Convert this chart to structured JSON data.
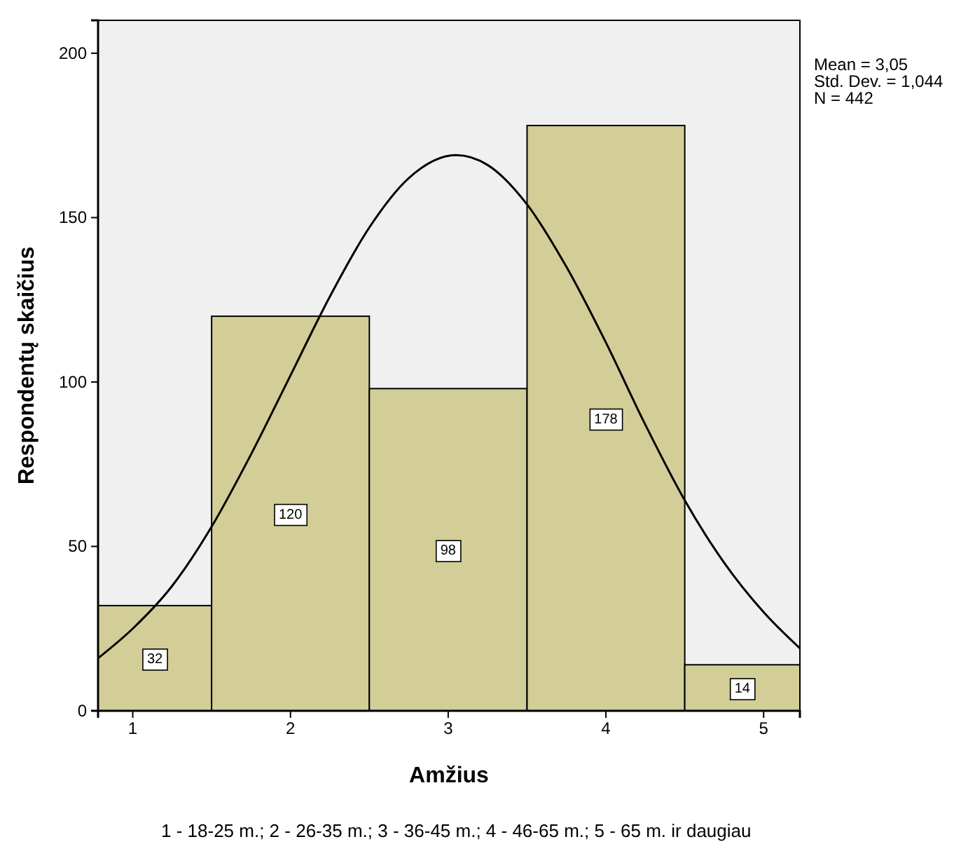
{
  "chart_data": {
    "type": "histogram",
    "xlabel": "Amžius",
    "ylabel": "Respondentų skaičius",
    "bins": [
      0.78,
      1.5,
      2.5,
      3.5,
      4.5,
      5.23
    ],
    "values": [
      32,
      120,
      98,
      178,
      14
    ],
    "color": "#d3ce97",
    "value_labels": [
      "32",
      "120",
      "98",
      "178",
      "14"
    ],
    "series": [
      {
        "type": "line",
        "color": "#000000",
        "x": [
          0.78,
          1,
          1.25,
          1.5,
          1.75,
          2,
          2.25,
          2.5,
          2.75,
          3.05,
          3.25,
          3.5,
          3.75,
          4,
          4.25,
          4.5,
          4.75,
          5,
          5.23
        ],
        "values": [
          16,
          25,
          38,
          56,
          78,
          102,
          126,
          147,
          162,
          169,
          166,
          154,
          135,
          112,
          87,
          64,
          45,
          30,
          19
        ]
      }
    ],
    "xlim": [
      0.78,
      5.23
    ],
    "xticks": [
      1,
      2,
      3,
      4,
      5
    ],
    "ylim": [
      0,
      210
    ],
    "yticks": [
      0,
      50,
      100,
      150,
      200
    ],
    "grid": false,
    "marker": "none",
    "line_style": "solid",
    "annotations": [
      "Mean = 3,05\nStd. Dev. = 1,044\nN = 442",
      "1 - 18-25 m.; 2 - 26-35 m.; 3 - 36-45 m.; 4 - 46-65 m.; 5 - 65 m. ir daugiau"
    ]
  }
}
